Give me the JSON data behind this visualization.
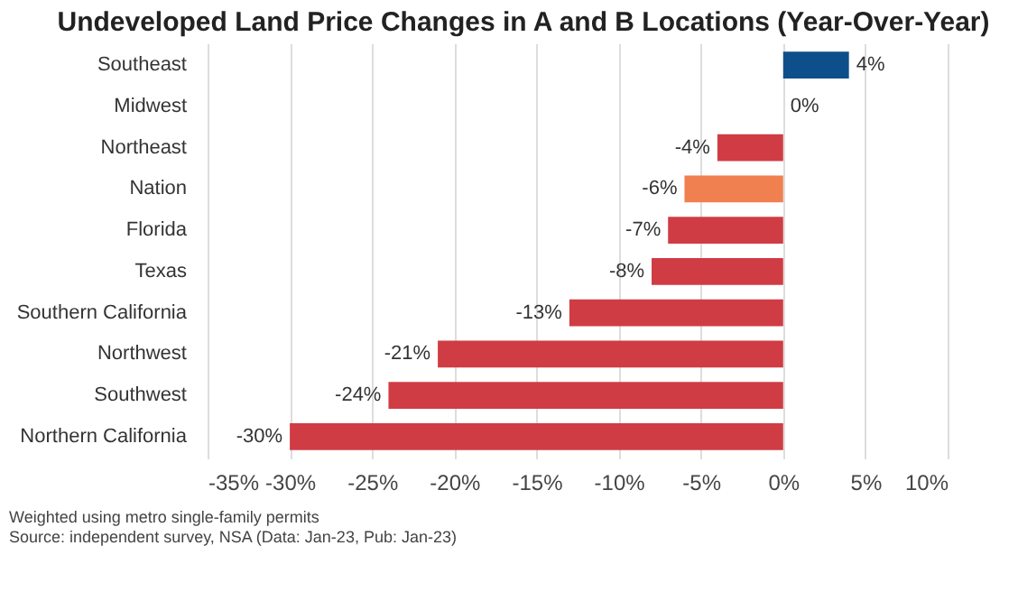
{
  "chart_data": {
    "type": "bar",
    "orientation": "horizontal",
    "title": "Undeveloped Land Price Changes in A and B Locations (Year-Over-Year)",
    "categories": [
      "Southeast",
      "Midwest",
      "Northeast",
      "Nation",
      "Florida",
      "Texas",
      "Southern California",
      "Northwest",
      "Southwest",
      "Northern California"
    ],
    "values": [
      4,
      0,
      -4,
      -6,
      -7,
      -8,
      -13,
      -21,
      -24,
      -30
    ],
    "colors": [
      "#0d4f8b",
      "#d03c44",
      "#d03c44",
      "#f08050",
      "#d03c44",
      "#d03c44",
      "#d03c44",
      "#d03c44",
      "#d03c44",
      "#d03c44"
    ],
    "value_labels": [
      "4%",
      "0%",
      "-4%",
      "-6%",
      "-7%",
      "-8%",
      "-13%",
      "-21%",
      "-24%",
      "-30%"
    ],
    "xlim": [
      -35,
      10
    ],
    "xticks": [
      {
        "value": -35,
        "label": "-35%"
      },
      {
        "value": -30,
        "label": "-30%"
      },
      {
        "value": -25,
        "label": "-25%"
      },
      {
        "value": -20,
        "label": "-20%"
      },
      {
        "value": -15,
        "label": "-15%"
      },
      {
        "value": -10,
        "label": "-10%"
      },
      {
        "value": -5,
        "label": "-5%"
      },
      {
        "value": 0,
        "label": "0%"
      },
      {
        "value": 5,
        "label": "5%"
      },
      {
        "value": 10,
        "label": "10%"
      }
    ],
    "grid": "x",
    "legend": false,
    "annotations": [
      "Weighted using metro single-family permits",
      "Source: independent survey, NSA (Data: Jan-23, Pub: Jan-23)"
    ]
  }
}
